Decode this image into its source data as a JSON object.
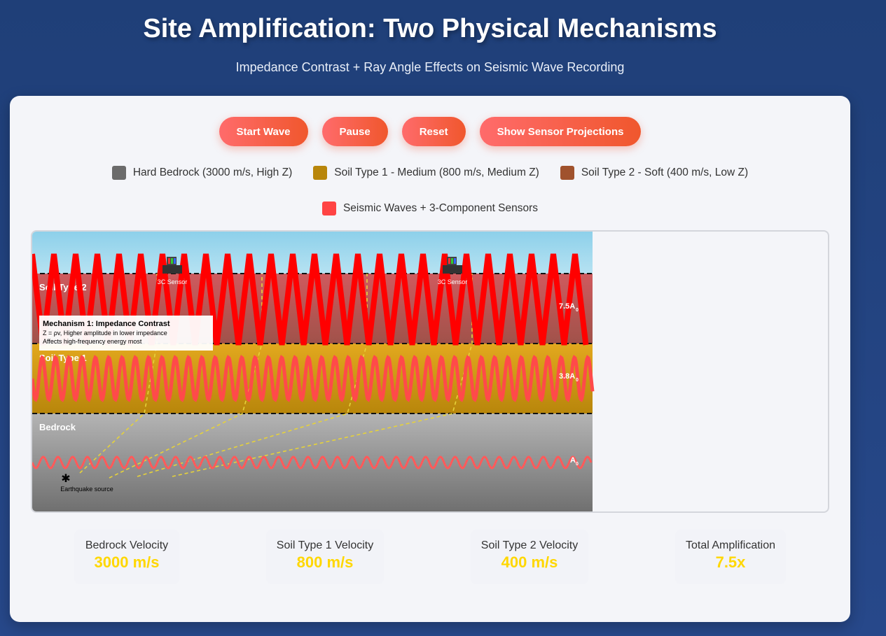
{
  "header": {
    "title": "Site Amplification: Two Physical Mechanisms",
    "subtitle": "Impedance Contrast + Ray Angle Effects on Seismic Wave Recording"
  },
  "controls": {
    "start_label": "Start Wave",
    "pause_label": "Pause",
    "reset_label": "Reset",
    "projections_label": "Show Sensor Projections"
  },
  "legend": [
    {
      "label": "Hard Bedrock (3000 m/s, High Z)",
      "color": "#6b6b6b"
    },
    {
      "label": "Soil Type 1 - Medium (800 m/s, Medium Z)",
      "color": "#b8860b"
    },
    {
      "label": "Soil Type 2 - Soft (400 m/s, Low Z)",
      "color": "#a0522d"
    },
    {
      "label": "Seismic Waves + 3-Component Sensors",
      "color": "#ff4444"
    }
  ],
  "simulation": {
    "layer_soil2_label": "Soil Type 2",
    "layer_soil1_label": "Soil Type 1",
    "layer_bedrock_label": "Bedrock",
    "sensor_label": "3C Sensor",
    "amp_soil2": "7.5A",
    "amp_soil1": "3.8A",
    "amp_bedrock": "A",
    "amp_subscript": "0",
    "source_label": "Earthquake source",
    "mechanism_title": "Mechanism 1: Impedance Contrast",
    "mechanism_line1": "Z = ρv, Higher amplitude in lower impedance",
    "mechanism_line2": "Affects high-frequency energy most",
    "colors": {
      "sky": "#8fd0ea",
      "soil2": "#c0555a",
      "soil1": "#c9951a",
      "bedrock": "#9a9a9a",
      "wave": "#ff0000",
      "wave_light": "#ff5a5a",
      "ray": "#e6d23a"
    }
  },
  "stats": [
    {
      "label": "Bedrock Velocity",
      "value": "3000 m/s"
    },
    {
      "label": "Soil Type 1 Velocity",
      "value": "800 m/s"
    },
    {
      "label": "Soil Type 2 Velocity",
      "value": "400 m/s"
    },
    {
      "label": "Total Amplification",
      "value": "7.5x"
    }
  ]
}
